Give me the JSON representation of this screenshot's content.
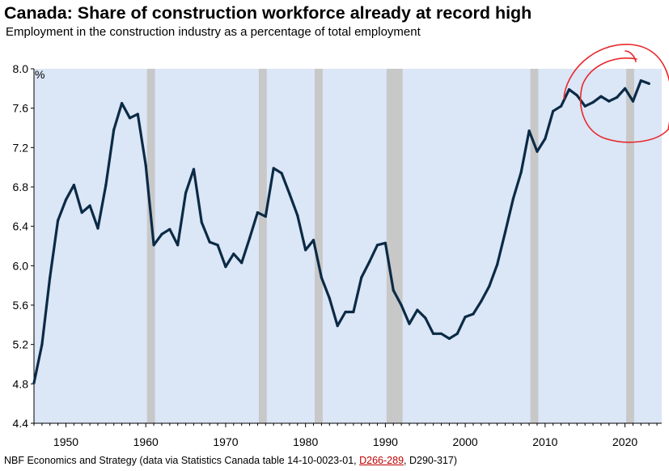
{
  "chart_data": {
    "type": "line",
    "title": "Canada: Share of construction workforce already at record high",
    "subtitle": "Employment in the construction industry as a percentage of total employment",
    "ylabel": "%",
    "xlabel": "",
    "ylim": [
      4.4,
      8.0
    ],
    "xlim": [
      1946,
      2023
    ],
    "yticks": [
      "4.4",
      "4.8",
      "5.2",
      "5.6",
      "6.0",
      "6.4",
      "6.8",
      "7.2",
      "7.6",
      "8.0"
    ],
    "xticks": [
      "1950",
      "1960",
      "1970",
      "1980",
      "1990",
      "2000",
      "2010",
      "2020"
    ],
    "grid": false,
    "line_color": "#0b2a45",
    "background_color": "#dbe6f6",
    "recession_color": "#c8c8c8",
    "recessions": [
      [
        1960,
        1961
      ],
      [
        1974,
        1975
      ],
      [
        1981,
        1982
      ],
      [
        1990,
        1992
      ],
      [
        2008,
        2009
      ],
      [
        2020,
        2021
      ]
    ],
    "series": [
      {
        "name": "",
        "x": [
          1946,
          1947,
          1948,
          1949,
          1950,
          1951,
          1952,
          1953,
          1954,
          1955,
          1956,
          1957,
          1958,
          1959,
          1960,
          1961,
          1962,
          1963,
          1964,
          1965,
          1966,
          1967,
          1968,
          1969,
          1970,
          1971,
          1972,
          1973,
          1974,
          1975,
          1976,
          1977,
          1978,
          1979,
          1980,
          1981,
          1982,
          1983,
          1984,
          1985,
          1986,
          1987,
          1988,
          1989,
          1990,
          1991,
          1992,
          1993,
          1994,
          1995,
          1996,
          1997,
          1998,
          1999,
          2000,
          2001,
          2002,
          2003,
          2004,
          2005,
          2006,
          2007,
          2008,
          2009,
          2010,
          2011,
          2012,
          2013,
          2014,
          2015,
          2016,
          2017,
          2018,
          2019,
          2020,
          2021,
          2022,
          2023
        ],
        "values": [
          4.81,
          5.2,
          5.88,
          6.46,
          6.67,
          6.82,
          6.54,
          6.61,
          6.38,
          6.82,
          7.38,
          7.65,
          7.5,
          7.54,
          7.02,
          6.21,
          6.32,
          6.37,
          6.21,
          6.74,
          6.98,
          6.44,
          6.24,
          6.21,
          5.99,
          6.12,
          6.03,
          6.28,
          6.54,
          6.5,
          6.99,
          6.94,
          6.73,
          6.51,
          6.16,
          6.26,
          5.88,
          5.67,
          5.39,
          5.53,
          5.53,
          5.88,
          6.04,
          6.21,
          6.23,
          5.75,
          5.6,
          5.41,
          5.55,
          5.47,
          5.31,
          5.31,
          5.26,
          5.31,
          5.48,
          5.51,
          5.64,
          5.79,
          6.01,
          6.34,
          6.68,
          6.95,
          7.37,
          7.16,
          7.29,
          7.57,
          7.62,
          7.79,
          7.73,
          7.62,
          7.66,
          7.72,
          7.67,
          7.71,
          7.8,
          7.67,
          7.88,
          7.85
        ]
      }
    ]
  },
  "source": {
    "prefix": "NBF Economics and Strategy (data via Statistics Canada table 14-10-0023-01, ",
    "link": "D266-289",
    "suffix": ", D290-317)"
  },
  "annotation": {
    "color": "#e8282c"
  }
}
